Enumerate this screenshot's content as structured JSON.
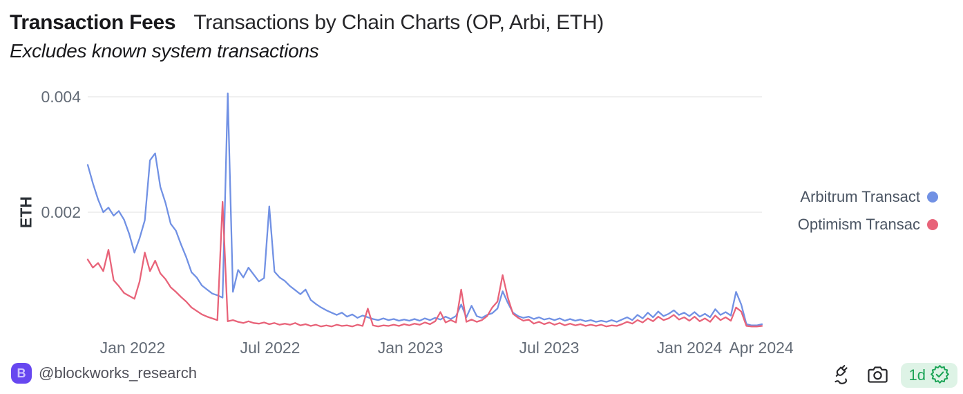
{
  "header": {
    "title": "Transaction Fees",
    "title_suffix": "Transactions by Chain Charts (OP, Arbi, ETH)",
    "subtitle": "Excludes known system transactions"
  },
  "chart_data": {
    "type": "line",
    "title": "Transaction Fees — Transactions by Chain Charts (OP, Arbi, ETH)",
    "ylabel": "ETH",
    "ylim": [
      0,
      0.0042
    ],
    "grid": "horizontal gridlines only",
    "legend_position": "right",
    "y_gridlines": [
      {
        "value": 0.002,
        "label": "0.002"
      },
      {
        "value": 0.004,
        "label": "0.004"
      }
    ],
    "x_range": [
      "Nov 2021",
      "Apr 2024"
    ],
    "x_ticks": [
      {
        "label": "Jan 2022",
        "f": 0.0666
      },
      {
        "label": "Jul 2022",
        "f": 0.2705
      },
      {
        "label": "Jan 2023",
        "f": 0.4785
      },
      {
        "label": "Jul 2023",
        "f": 0.6844
      },
      {
        "label": "Jan 2024",
        "f": 0.8924
      },
      {
        "label": "Apr 2024",
        "f": 0.999
      }
    ],
    "series": [
      {
        "name": "Arbitrum Transact",
        "color": "#7191e4",
        "values": [
          0.00282,
          0.0025,
          0.00222,
          0.002,
          0.00208,
          0.00194,
          0.00202,
          0.00187,
          0.00162,
          0.0013,
          0.00155,
          0.00186,
          0.0029,
          0.00302,
          0.00244,
          0.00216,
          0.0018,
          0.00168,
          0.00144,
          0.00122,
          0.00096,
          0.00087,
          0.00073,
          0.00066,
          0.00059,
          0.00056,
          0.00052,
          0.00406,
          0.00062,
          0.001,
          0.00087,
          0.00104,
          0.00092,
          0.0008,
          0.00086,
          0.0021,
          0.00097,
          0.00087,
          0.00081,
          0.00072,
          0.00065,
          0.00058,
          0.00066,
          0.00048,
          0.00041,
          0.00035,
          0.0003,
          0.00026,
          0.00022,
          0.00026,
          0.00019,
          0.00023,
          0.00017,
          0.00021,
          0.00018,
          0.00015,
          0.00013,
          0.00016,
          0.00013,
          0.00015,
          0.00012,
          0.00014,
          0.00012,
          0.00015,
          0.00012,
          0.00016,
          0.00013,
          0.00017,
          0.00014,
          0.00019,
          0.00015,
          0.0002,
          0.0004,
          0.00018,
          0.00038,
          0.0002,
          0.00017,
          0.00022,
          0.00025,
          0.00033,
          0.00063,
          0.00043,
          0.00026,
          0.0002,
          0.00017,
          0.00019,
          0.00015,
          0.00018,
          0.00014,
          0.00016,
          0.00013,
          0.00016,
          0.00012,
          0.00015,
          0.00012,
          0.00014,
          0.00011,
          0.00013,
          0.0001,
          0.00012,
          0.0001,
          0.00013,
          0.0001,
          0.00014,
          0.00018,
          0.00013,
          0.00022,
          0.00016,
          0.00026,
          0.00018,
          0.00028,
          0.0002,
          0.00024,
          0.0003,
          0.00022,
          0.00026,
          0.0002,
          0.00027,
          0.00019,
          0.00024,
          0.00018,
          0.00032,
          0.00022,
          0.00027,
          0.00021,
          0.00062,
          0.0004,
          6e-05,
          4e-05,
          4e-05,
          6e-05
        ]
      },
      {
        "name": "Optimism Transac",
        "color": "#e86379",
        "values": [
          0.00118,
          0.00104,
          0.00112,
          0.00098,
          0.00135,
          0.00082,
          0.00072,
          0.0006,
          0.00055,
          0.0005,
          0.0008,
          0.0013,
          0.00098,
          0.00116,
          0.00094,
          0.00084,
          0.0007,
          0.00062,
          0.00053,
          0.00045,
          0.00035,
          0.00029,
          0.00023,
          0.00019,
          0.00016,
          0.00013,
          0.00218,
          0.00011,
          0.00013,
          0.0001,
          8e-05,
          0.00011,
          8e-05,
          7e-05,
          9e-05,
          6e-05,
          8e-05,
          5e-05,
          7e-05,
          5e-05,
          8e-05,
          4e-05,
          6e-05,
          3e-05,
          5e-05,
          2e-05,
          4e-05,
          2e-05,
          5e-05,
          3e-05,
          4e-05,
          2e-05,
          5e-05,
          3e-05,
          0.00033,
          4e-05,
          2e-05,
          4e-05,
          3e-05,
          5e-05,
          3e-05,
          6e-05,
          4e-05,
          7e-05,
          5e-05,
          9e-05,
          6e-05,
          0.00011,
          0.00027,
          9e-05,
          0.00013,
          9e-05,
          0.00066,
          0.0001,
          0.00014,
          0.0001,
          0.00013,
          0.0002,
          0.00035,
          0.00045,
          0.00091,
          0.00052,
          0.00024,
          0.00017,
          0.00012,
          0.00014,
          7e-05,
          0.0001,
          6e-05,
          9e-05,
          5e-05,
          8e-05,
          4e-05,
          7e-05,
          4e-05,
          6e-05,
          3e-05,
          5e-05,
          3e-05,
          5e-05,
          2e-05,
          4e-05,
          3e-05,
          6e-05,
          0.0001,
          7e-05,
          0.00013,
          9e-05,
          0.00016,
          0.00011,
          0.00019,
          0.00013,
          0.00016,
          0.00022,
          0.00014,
          0.00018,
          0.00012,
          0.00019,
          0.00011,
          0.00016,
          0.0001,
          0.00021,
          0.00013,
          0.00018,
          0.00012,
          0.00035,
          0.00028,
          3e-05,
          2e-05,
          2e-05,
          3e-05
        ]
      }
    ]
  },
  "legend": {
    "items": [
      {
        "label": "Arbitrum Transact",
        "color": "#7191e4"
      },
      {
        "label": "Optimism Transac",
        "color": "#e86379"
      }
    ]
  },
  "footer": {
    "logo_letter": "B",
    "logo_color": "#6747f0",
    "handle": "@blockworks_research",
    "icons": [
      "plug-icon",
      "camera-icon",
      "verified-seal-icon"
    ],
    "badge": {
      "text": "1d",
      "color": "#1aa355",
      "bg": "#def3e6"
    }
  },
  "colors": {
    "background": "#ffffff",
    "gridline": "#ececec",
    "tick_text": "#636b76",
    "arbitrum_blue": "#7191e4",
    "optimism_red": "#e86379",
    "badge_green": "#1aa355"
  }
}
